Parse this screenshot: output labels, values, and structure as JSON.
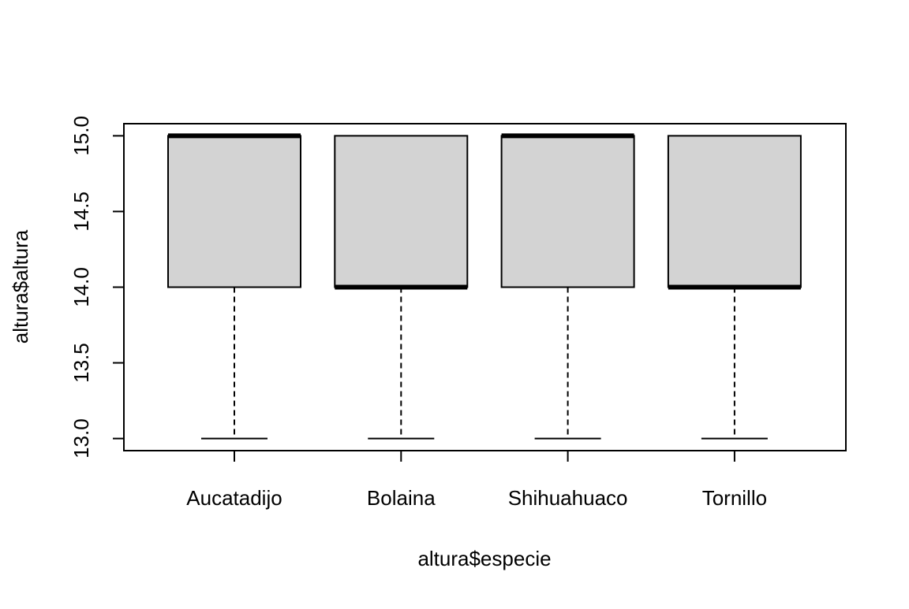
{
  "chart_data": {
    "type": "boxplot",
    "xlabel": "altura$especie",
    "ylabel": "altura$altura",
    "ylim": [
      12.92,
      15.08
    ],
    "yticks": [
      13.0,
      13.5,
      14.0,
      14.5,
      15.0
    ],
    "ytick_labels": [
      "13.0",
      "13.5",
      "14.0",
      "14.5",
      "15.0"
    ],
    "categories": [
      "Aucatadijo",
      "Bolaina",
      "Shihuahuaco",
      "Tornillo"
    ],
    "boxes": [
      {
        "category": "Aucatadijo",
        "min": 13.0,
        "q1": 14.0,
        "median": 15.0,
        "q3": 15.0,
        "max": 15.0
      },
      {
        "category": "Bolaina",
        "min": 13.0,
        "q1": 14.0,
        "median": 14.0,
        "q3": 15.0,
        "max": 15.0
      },
      {
        "category": "Shihuahuaco",
        "min": 13.0,
        "q1": 14.0,
        "median": 15.0,
        "q3": 15.0,
        "max": 15.0
      },
      {
        "category": "Tornillo",
        "min": 13.0,
        "q1": 14.0,
        "median": 14.0,
        "q3": 15.0,
        "max": 15.0
      }
    ],
    "box_fill": "#d3d3d3",
    "grid": false,
    "legend": "none"
  }
}
